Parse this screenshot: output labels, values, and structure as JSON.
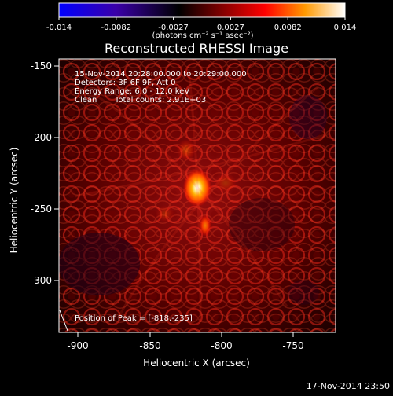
{
  "plot": {
    "title": "Reconstructed RHESSI Image",
    "x_label": "Heliocentric X (arcsec)",
    "y_label": "Heliocentric Y (arcsec)",
    "x_ticks": [
      "-900",
      "-850",
      "-800",
      "-750"
    ],
    "y_ticks": [
      "-150",
      "-200",
      "-250",
      "-300"
    ]
  },
  "colorbar": {
    "ticks": [
      "-0.014",
      "-0.0082",
      "-0.0027",
      "0.0027",
      "0.0082",
      "0.014"
    ],
    "units": "(photons cm⁻² s⁻¹ asec⁻²)",
    "colors": [
      "#0000ff",
      "#3a00a8",
      "#000000",
      "#8b0000",
      "#ff0000",
      "#ff9900",
      "#ffffff"
    ]
  },
  "overlay": {
    "line1": "15-Nov-2014 20:28:00.000 to 20:29:00.000",
    "line2": "Detectors: 3F 6F 9F, Att 0",
    "line3": "Energy Range: 6.0 - 12.0 keV",
    "line4_left": "Clean",
    "line4_right": "Total counts: 2.91E+03",
    "peak_text": "Position of Peak = [-818,-235]"
  },
  "timestamp": "17-Nov-2014 23:50"
}
